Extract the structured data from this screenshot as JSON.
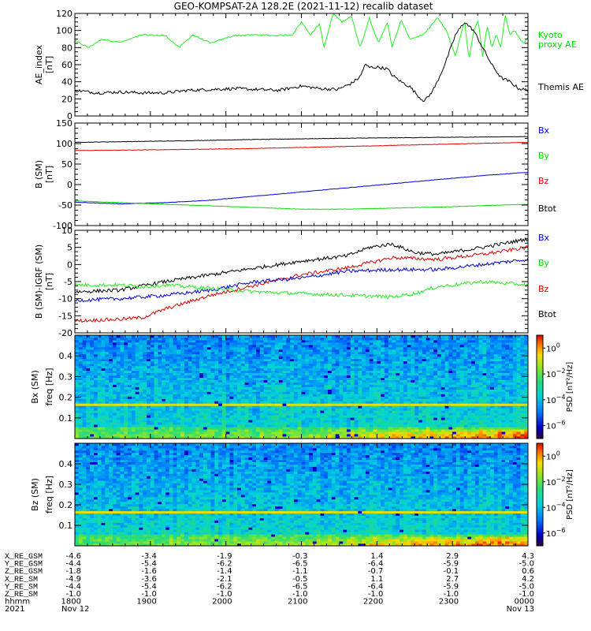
{
  "title": "GEO-KOMPSAT-2A 128.2E (2021-11-12) recalib dataset",
  "time_axis": {
    "x": [
      1800,
      1900,
      2000,
      2100,
      2200,
      2300,
      0
    ],
    "labels": [
      "1800",
      "1900",
      "2000",
      "2100",
      "2200",
      "2300",
      "0000"
    ],
    "year": "2021",
    "date_start": "Nov 12",
    "date_end": "Nov 13",
    "hhmm_label": "hhmm"
  },
  "ephemeris": [
    {
      "name": "X_RE_GSM",
      "values": [
        "-4.6",
        "-3.4",
        "-1.9",
        "-0.3",
        "1.4",
        "2.9",
        "4.3"
      ]
    },
    {
      "name": "Y_RE_GSM",
      "values": [
        "-4.4",
        "-5.4",
        "-6.2",
        "-6.5",
        "-6.4",
        "-5.9",
        "-5.0"
      ]
    },
    {
      "name": "Z_RE_GSM",
      "values": [
        "-1.8",
        "-1.6",
        "-1.4",
        "-1.1",
        "-0.7",
        "-0.1",
        "0.6"
      ]
    },
    {
      "name": "X_RE_SM",
      "values": [
        "-4.9",
        "-3.6",
        "-2.1",
        "-0.5",
        "1.1",
        "2.7",
        "4.2"
      ]
    },
    {
      "name": "Y_RE_SM",
      "values": [
        "-4.4",
        "-5.4",
        "-6.2",
        "-6.5",
        "-6.4",
        "-5.9",
        "-5.0"
      ]
    },
    {
      "name": "Z_RE_SM",
      "values": [
        "-1.0",
        "-1.0",
        "-1.0",
        "-1.0",
        "-1.0",
        "-1.0",
        "-1.0"
      ]
    }
  ],
  "colors": {
    "black": "#000000",
    "red": "#e00000",
    "green": "#00dd00",
    "blue": "#0000dd",
    "line_green": "#22ee22"
  },
  "chart_data": [
    {
      "type": "line",
      "panel": "ae",
      "ylabel": "AE_index",
      "yunit": "[nT]",
      "ylim": [
        0,
        120
      ],
      "yticks": [
        0,
        20,
        40,
        60,
        80,
        100,
        120
      ],
      "legend": [
        {
          "label": "Kyoto",
          "color": "#00dd00"
        },
        {
          "label": "proxy AE",
          "color": "#00dd00"
        },
        {
          "label": "Themis AE",
          "color": "#000000"
        }
      ],
      "series": [
        {
          "name": "Kyoto proxy AE",
          "color": "#22ee22",
          "x": [
            0,
            0.03,
            0.06,
            0.1,
            0.15,
            0.2,
            0.23,
            0.26,
            0.3,
            0.35,
            0.4,
            0.44,
            0.48,
            0.5,
            0.52,
            0.54,
            0.55,
            0.57,
            0.59,
            0.61,
            0.63,
            0.65,
            0.67,
            0.69,
            0.7,
            0.72,
            0.74,
            0.77,
            0.8,
            0.82,
            0.84,
            0.86,
            0.87,
            0.88,
            0.89,
            0.9,
            0.91,
            0.92,
            0.93,
            0.94,
            0.95,
            0.96,
            0.97,
            0.98,
            0.99,
            1.0
          ],
          "y": [
            88,
            80,
            90,
            86,
            95,
            94,
            80,
            95,
            85,
            94,
            95,
            94,
            95,
            110,
            95,
            108,
            80,
            120,
            110,
            117,
            80,
            115,
            85,
            110,
            80,
            112,
            90,
            95,
            115,
            100,
            70,
            112,
            65,
            100,
            112,
            70,
            105,
            80,
            95,
            80,
            118,
            95,
            100,
            92,
            85,
            92
          ]
        },
        {
          "name": "Themis AE",
          "color": "#000000",
          "x": [
            0,
            0.05,
            0.1,
            0.15,
            0.2,
            0.25,
            0.3,
            0.35,
            0.4,
            0.45,
            0.5,
            0.54,
            0.58,
            0.61,
            0.63,
            0.64,
            0.65,
            0.67,
            0.69,
            0.7,
            0.72,
            0.74,
            0.76,
            0.77,
            0.78,
            0.79,
            0.8,
            0.82,
            0.84,
            0.86,
            0.88,
            0.9,
            0.92,
            0.94,
            0.96,
            0.98,
            1.0
          ],
          "y": [
            30,
            27,
            28,
            27,
            27,
            30,
            31,
            32,
            31,
            30,
            35,
            32,
            31,
            38,
            46,
            60,
            57,
            57,
            55,
            48,
            40,
            34,
            22,
            18,
            22,
            30,
            40,
            65,
            95,
            110,
            100,
            80,
            60,
            45,
            40,
            32,
            30
          ]
        }
      ]
    },
    {
      "type": "line",
      "panel": "b_sm",
      "ylabel": "B (SM)",
      "yunit": "[nT]",
      "ylim": [
        -100,
        150
      ],
      "yticks": [
        -100,
        -50,
        0,
        50,
        100,
        150
      ],
      "legend": [
        {
          "label": "Bx",
          "color": "#0000dd"
        },
        {
          "label": "By",
          "color": "#00dd00"
        },
        {
          "label": "Bz",
          "color": "#e00000"
        },
        {
          "label": "Btot",
          "color": "#000000"
        }
      ],
      "series": [
        {
          "name": "Btot",
          "color": "#000000",
          "x": [
            0,
            0.2,
            0.4,
            0.6,
            0.8,
            1.0
          ],
          "y": [
            103,
            106,
            110,
            113,
            115,
            117
          ]
        },
        {
          "name": "Bz",
          "color": "#e00000",
          "x": [
            0,
            0.2,
            0.4,
            0.6,
            0.8,
            1.0
          ],
          "y": [
            83,
            85,
            88,
            93,
            98,
            103
          ]
        },
        {
          "name": "Bx",
          "color": "#0000dd",
          "x": [
            0,
            0.1,
            0.2,
            0.3,
            0.4,
            0.5,
            0.6,
            0.7,
            0.8,
            0.9,
            1.0
          ],
          "y": [
            -43,
            -47,
            -44,
            -38,
            -28,
            -18,
            -8,
            2,
            12,
            22,
            30
          ]
        },
        {
          "name": "By",
          "color": "#00dd00",
          "x": [
            0,
            0.2,
            0.4,
            0.5,
            0.6,
            0.8,
            1.0
          ],
          "y": [
            -40,
            -48,
            -56,
            -60,
            -60,
            -55,
            -48
          ]
        }
      ]
    },
    {
      "type": "line",
      "panel": "b_minus_igrf",
      "ylabel": "B (SM)-IGRF (SM)",
      "yunit": "[nT]",
      "ylim": [
        -20,
        10
      ],
      "yticks": [
        -20,
        -15,
        -10,
        -5,
        0,
        5,
        10
      ],
      "legend": [
        {
          "label": "Bx",
          "color": "#0000dd"
        },
        {
          "label": "By",
          "color": "#00dd00"
        },
        {
          "label": "Bz",
          "color": "#e00000"
        },
        {
          "label": "Btot",
          "color": "#000000"
        }
      ],
      "series": [
        {
          "name": "Btot",
          "color": "#000000",
          "x": [
            0,
            0.1,
            0.2,
            0.3,
            0.4,
            0.5,
            0.6,
            0.65,
            0.7,
            0.75,
            0.8,
            0.9,
            1.0
          ],
          "y": [
            -8,
            -7.5,
            -5,
            -3,
            -1,
            1,
            2.5,
            5,
            6,
            3.5,
            3,
            5,
            7.5
          ]
        },
        {
          "name": "Bz",
          "color": "#e00000",
          "x": [
            0,
            0.1,
            0.15,
            0.2,
            0.3,
            0.4,
            0.5,
            0.6,
            0.7,
            0.8,
            0.9,
            1.0
          ],
          "y": [
            -16.5,
            -16,
            -15.5,
            -13,
            -9,
            -6,
            -3,
            -1,
            2,
            1.5,
            3,
            5
          ]
        },
        {
          "name": "Bx",
          "color": "#0000dd",
          "x": [
            0,
            0.1,
            0.2,
            0.3,
            0.4,
            0.5,
            0.6,
            0.7,
            0.8,
            0.9,
            1.0
          ],
          "y": [
            -10.5,
            -10,
            -9,
            -7.5,
            -5,
            -4,
            -2,
            -1.5,
            -1.5,
            0,
            1.5
          ]
        },
        {
          "name": "By",
          "color": "#22ee22",
          "x": [
            0,
            0.1,
            0.15,
            0.2,
            0.3,
            0.4,
            0.5,
            0.6,
            0.7,
            0.75,
            0.8,
            0.9,
            1.0
          ],
          "y": [
            -6,
            -6,
            -6.5,
            -6,
            -7,
            -8,
            -8.5,
            -9,
            -9.5,
            -8.5,
            -6.5,
            -5,
            -6
          ]
        }
      ]
    },
    {
      "type": "heatmap",
      "panel": "bx_spectrum",
      "ylabel": "Bx (SM)",
      "yunit_label": "freq [Hz]",
      "ylim": [
        0,
        0.5
      ],
      "yticks": [
        0.1,
        0.2,
        0.3,
        0.4
      ],
      "ytick_labels": [
        "0.1",
        "0.2",
        "0.3",
        "0.4"
      ],
      "colorbar": {
        "label": "PSD [nT²/Hz]",
        "ticks": [
          {
            "base": "10",
            "exp": "0"
          },
          {
            "base": "10",
            "exp": "−2"
          },
          {
            "base": "10",
            "exp": "−4"
          },
          {
            "base": "10",
            "exp": "−6"
          }
        ],
        "range_log10": [
          -7,
          1
        ]
      }
    },
    {
      "type": "heatmap",
      "panel": "bz_spectrum",
      "ylabel": "Bz (SM)",
      "yunit_label": "freq [Hz]",
      "ylim": [
        0,
        0.5
      ],
      "yticks": [
        0.1,
        0.2,
        0.3,
        0.4
      ],
      "ytick_labels": [
        "0.1",
        "0.2",
        "0.3",
        "0.4"
      ],
      "colorbar": {
        "label": "PSD [nT²/Hz]",
        "ticks": [
          {
            "base": "10",
            "exp": "0"
          },
          {
            "base": "10",
            "exp": "−2"
          },
          {
            "base": "10",
            "exp": "−4"
          },
          {
            "base": "10",
            "exp": "−6"
          }
        ],
        "range_log10": [
          -7,
          1
        ]
      }
    }
  ]
}
